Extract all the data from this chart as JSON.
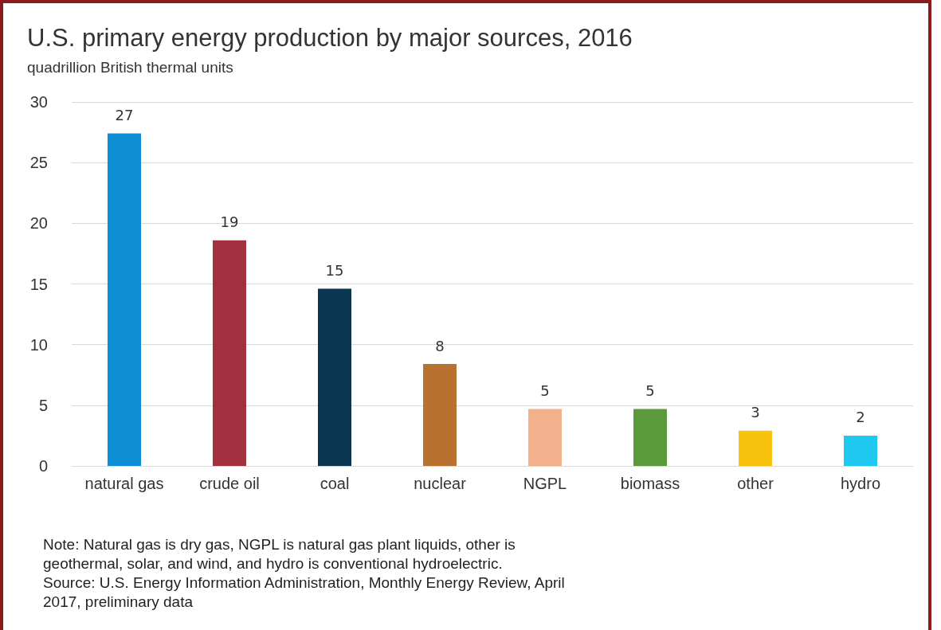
{
  "chart_data": {
    "type": "bar",
    "title": "U.S. primary energy production by major sources, 2016",
    "subtitle": "quadrillion British thermal units",
    "categories": [
      "natural gas",
      "crude oil",
      "coal",
      "nuclear",
      "NGPL",
      "biomass",
      "other",
      "hydro"
    ],
    "values": [
      27.4,
      18.6,
      14.6,
      8.4,
      4.7,
      4.7,
      2.9,
      2.5
    ],
    "value_labels": [
      "27",
      "19",
      "15",
      "8",
      "5",
      "5",
      "3",
      "2"
    ],
    "colors": [
      "#0f8fd6",
      "#a3303f",
      "#0b3652",
      "#b8712f",
      "#f2b08c",
      "#5b9a3a",
      "#f7c30c",
      "#1fc8ef"
    ],
    "ylim": [
      0,
      30
    ],
    "yticks": [
      0,
      5,
      10,
      15,
      20,
      25,
      30
    ],
    "grid": "y",
    "annotations": [
      "Note: Natural gas is dry gas, NGPL is natural gas plant liquids, other is geothermal, solar, and wind, and hydro is conventional hydroelectric.",
      "Source: U.S. Energy Information Administration, Monthly Energy Review, April 2017, preliminary data"
    ]
  }
}
